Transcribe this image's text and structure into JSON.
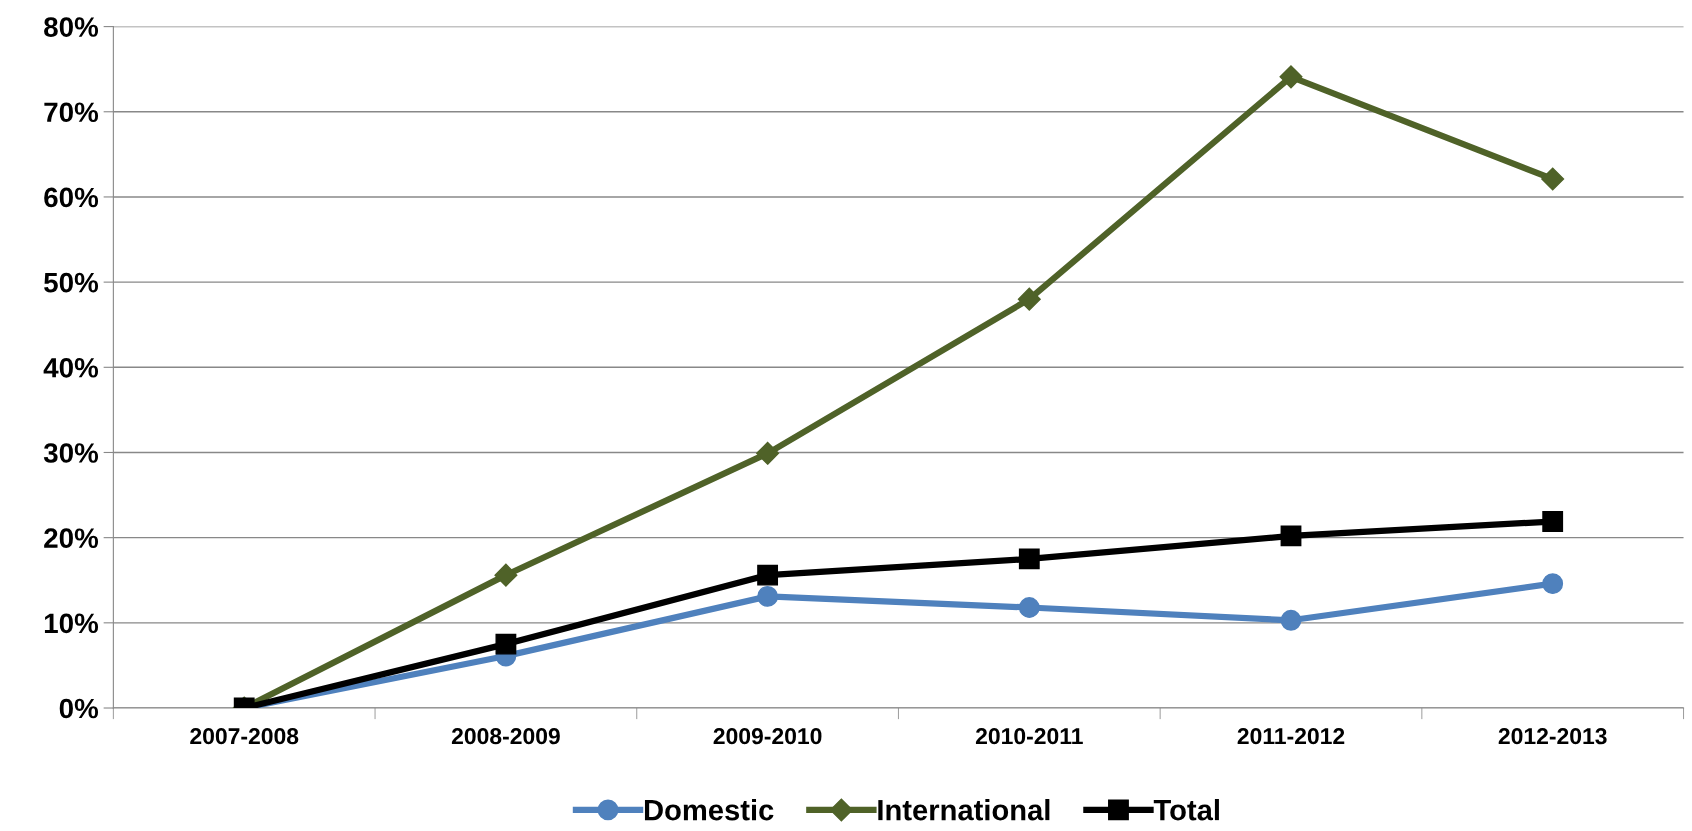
{
  "chart_data": {
    "type": "line",
    "categories": [
      "2007-2008",
      "2008-2009",
      "2009-2010",
      "2010-2011",
      "2011-2012",
      "2012-2013"
    ],
    "series": [
      {
        "name": "Domestic",
        "color": "#4f81bd",
        "marker": "circle",
        "values": [
          0,
          6.1,
          13.1,
          11.8,
          10.3,
          14.6
        ]
      },
      {
        "name": "International",
        "color": "#4f6228",
        "marker": "diamond",
        "values": [
          0,
          15.6,
          29.9,
          48.0,
          74.1,
          62.1
        ]
      },
      {
        "name": "Total",
        "color": "#000000",
        "marker": "square",
        "values": [
          0,
          7.5,
          15.6,
          17.5,
          20.2,
          21.9
        ]
      }
    ],
    "ylim": [
      0,
      80
    ],
    "yticks": [
      {
        "value": 0,
        "label": "0%"
      },
      {
        "value": 10,
        "label": "10%"
      },
      {
        "value": 20,
        "label": "20%"
      },
      {
        "value": 30,
        "label": "30%"
      },
      {
        "value": 40,
        "label": "40%"
      },
      {
        "value": 50,
        "label": "50%"
      },
      {
        "value": 60,
        "label": "60%"
      },
      {
        "value": 70,
        "label": "70%"
      },
      {
        "value": 80,
        "label": "80%"
      }
    ],
    "grid": "y",
    "legend": "bottom",
    "line_style": "solid"
  }
}
